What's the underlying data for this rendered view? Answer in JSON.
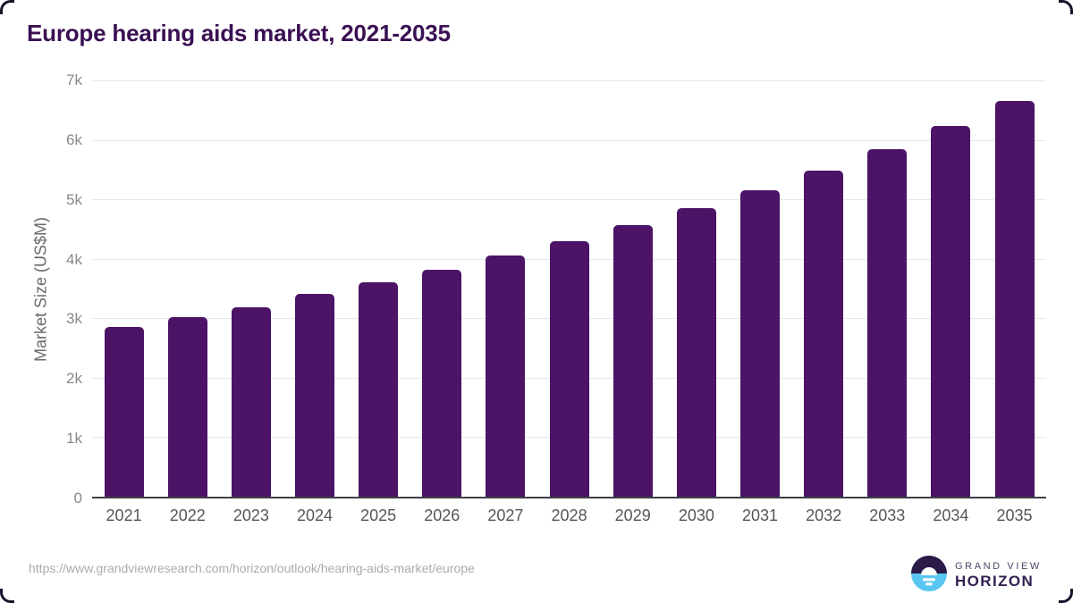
{
  "title": "Europe hearing aids market, 2021-2035",
  "colors": {
    "bar": "#4c1366",
    "title_text": "#3a1053",
    "y_axis_text": "#86888b",
    "x_axis_text": "#55565a",
    "gridline": "#e8e8ea",
    "axis_line": "#3f4045",
    "url_text": "#a9abae",
    "logo_blue": "#59c6f2",
    "logo_dark_purple": "#2b1947"
  },
  "chart_data": {
    "type": "bar",
    "title": "Europe hearing aids market, 2021-2035",
    "categories": [
      "2021",
      "2022",
      "2023",
      "2024",
      "2025",
      "2026",
      "2027",
      "2028",
      "2029",
      "2030",
      "2031",
      "2032",
      "2033",
      "2034",
      "2035"
    ],
    "values": [
      2850,
      3020,
      3190,
      3410,
      3600,
      3810,
      4050,
      4290,
      4560,
      4850,
      5150,
      5490,
      5850,
      6240,
      6650
    ],
    "xlabel": "",
    "ylabel": "Market Size (US$M)",
    "ylim": [
      0,
      7000
    ],
    "ytick_step": 1000,
    "ytick_labels": [
      "0",
      "1k",
      "2k",
      "3k",
      "4k",
      "5k",
      "6k",
      "7k"
    ],
    "grid": "horizontal",
    "legend_position": "none"
  },
  "footer": {
    "source_url": "https://www.grandviewresearch.com/horizon/outlook/hearing-aids-market/europe",
    "logo": {
      "line1": "GRAND VIEW",
      "line2": "HORIZON",
      "icon": "horizon-sunrise-circle"
    }
  }
}
